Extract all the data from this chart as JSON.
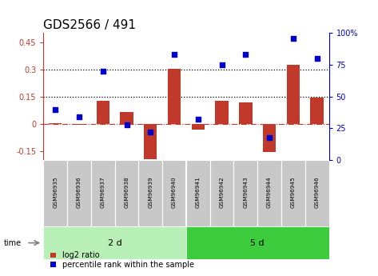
{
  "title": "GDS2566 / 491",
  "samples": [
    "GSM96935",
    "GSM96936",
    "GSM96937",
    "GSM96938",
    "GSM96939",
    "GSM96940",
    "GSM96941",
    "GSM96942",
    "GSM96943",
    "GSM96944",
    "GSM96945",
    "GSM96946"
  ],
  "log2_ratio": [
    0.005,
    -0.005,
    0.125,
    0.065,
    -0.195,
    0.305,
    -0.03,
    0.125,
    0.12,
    -0.155,
    0.325,
    0.145
  ],
  "percentile_rank": [
    40,
    34,
    70,
    28,
    22,
    83,
    32,
    75,
    83,
    18,
    96,
    80
  ],
  "group_labels": [
    "2 d",
    "5 d"
  ],
  "group_sizes": [
    6,
    6
  ],
  "ylim_left": [
    -0.2,
    0.5
  ],
  "ylim_right": [
    0,
    100
  ],
  "yticks_left": [
    -0.15,
    0,
    0.15,
    0.3,
    0.45
  ],
  "yticks_right": [
    0,
    25,
    50,
    75,
    100
  ],
  "hline_dotted": [
    0.15,
    0.3
  ],
  "hline_dash": 0,
  "bar_color": "#c0392b",
  "dot_color": "#0000cc",
  "group1_color": "#b8f0b8",
  "group2_color": "#3dcc3d",
  "sample_bg_color": "#c8c8c8",
  "legend_bar_label": "log2 ratio",
  "legend_dot_label": "percentile rank within the sample",
  "time_label": "time",
  "title_fontsize": 11,
  "tick_fontsize": 7,
  "legend_fontsize": 7,
  "bar_width": 0.55
}
